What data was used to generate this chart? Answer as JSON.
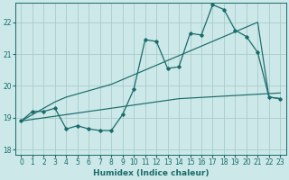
{
  "xlabel": "Humidex (Indice chaleur)",
  "bg_color": "#cce8e8",
  "grid_color": "#aacccc",
  "line_color": "#1a6b6b",
  "xlim": [
    -0.5,
    23.5
  ],
  "ylim": [
    17.85,
    22.6
  ],
  "yticks": [
    18,
    19,
    20,
    21,
    22
  ],
  "xticks": [
    0,
    1,
    2,
    3,
    4,
    5,
    6,
    7,
    8,
    9,
    10,
    11,
    12,
    13,
    14,
    15,
    16,
    17,
    18,
    19,
    20,
    21,
    22,
    23
  ],
  "x": [
    0,
    1,
    2,
    3,
    4,
    5,
    6,
    7,
    8,
    9,
    10,
    11,
    12,
    13,
    14,
    15,
    16,
    17,
    18,
    19,
    20,
    21,
    22,
    23
  ],
  "y_main": [
    18.9,
    19.2,
    19.2,
    19.3,
    18.65,
    18.75,
    18.65,
    18.6,
    18.6,
    19.1,
    19.9,
    21.45,
    21.4,
    20.55,
    20.6,
    21.65,
    21.6,
    22.55,
    22.4,
    21.75,
    21.55,
    21.05,
    19.65,
    19.6
  ],
  "y_steep": [
    18.9,
    19.1,
    19.3,
    19.5,
    19.65,
    19.75,
    19.85,
    19.95,
    20.05,
    20.2,
    20.35,
    20.5,
    20.65,
    20.8,
    20.95,
    21.1,
    21.25,
    21.4,
    21.55,
    21.7,
    21.85,
    22.0,
    19.65,
    19.6
  ],
  "y_flat": [
    18.9,
    18.95,
    19.0,
    19.05,
    19.1,
    19.15,
    19.2,
    19.25,
    19.3,
    19.35,
    19.4,
    19.45,
    19.5,
    19.55,
    19.6,
    19.62,
    19.64,
    19.66,
    19.68,
    19.7,
    19.72,
    19.74,
    19.76,
    19.78
  ],
  "tick_fontsize": 5.5,
  "axis_fontsize": 6.5
}
